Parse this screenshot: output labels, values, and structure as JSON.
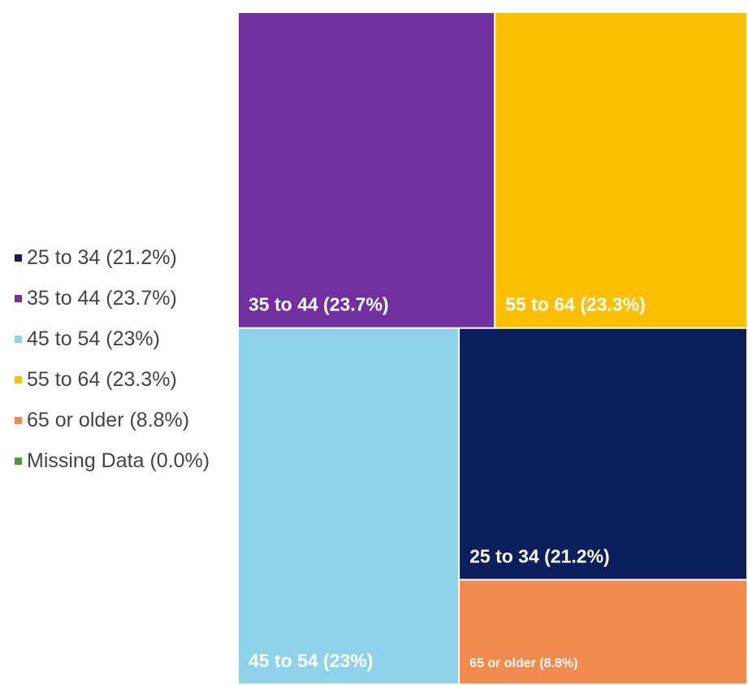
{
  "chart_data": {
    "type": "treemap",
    "title": "",
    "legend_placement": "left",
    "legend": [
      {
        "label": "25 to 34 (21.2%)",
        "color": "#0a1f5c"
      },
      {
        "label": "35 to 44 (23.7%)",
        "color": "#7030a0"
      },
      {
        "label": "45 to 54 (23%)",
        "color": "#8ed3ea"
      },
      {
        "label": "55 to 64 (23.3%)",
        "color": "#fdc000"
      },
      {
        "label": "65 or older (8.8%)",
        "color": "#f28b4d"
      },
      {
        "label": "Missing Data (0.0%)",
        "color": "#4e9a3c"
      }
    ],
    "tiles": [
      {
        "category": "35 to 44",
        "value": 23.7,
        "label": "35 to 44 (23.7%)",
        "color": "#7030a0"
      },
      {
        "category": "55 to 64",
        "value": 23.3,
        "label": "55 to 64 (23.3%)",
        "color": "#fdc000"
      },
      {
        "category": "45 to 54",
        "value": 23.0,
        "label": "45 to 54 (23%)",
        "color": "#8ed3ea"
      },
      {
        "category": "25 to 34",
        "value": 21.2,
        "label": "25 to 34 (21.2%)",
        "color": "#0a1f5c"
      },
      {
        "category": "65 or older",
        "value": 8.8,
        "label": "65 or older (8.8%)",
        "color": "#f28b4d"
      },
      {
        "category": "Missing Data",
        "value": 0.0,
        "label": "Missing Data (0.0%)",
        "color": "#4e9a3c"
      }
    ]
  }
}
